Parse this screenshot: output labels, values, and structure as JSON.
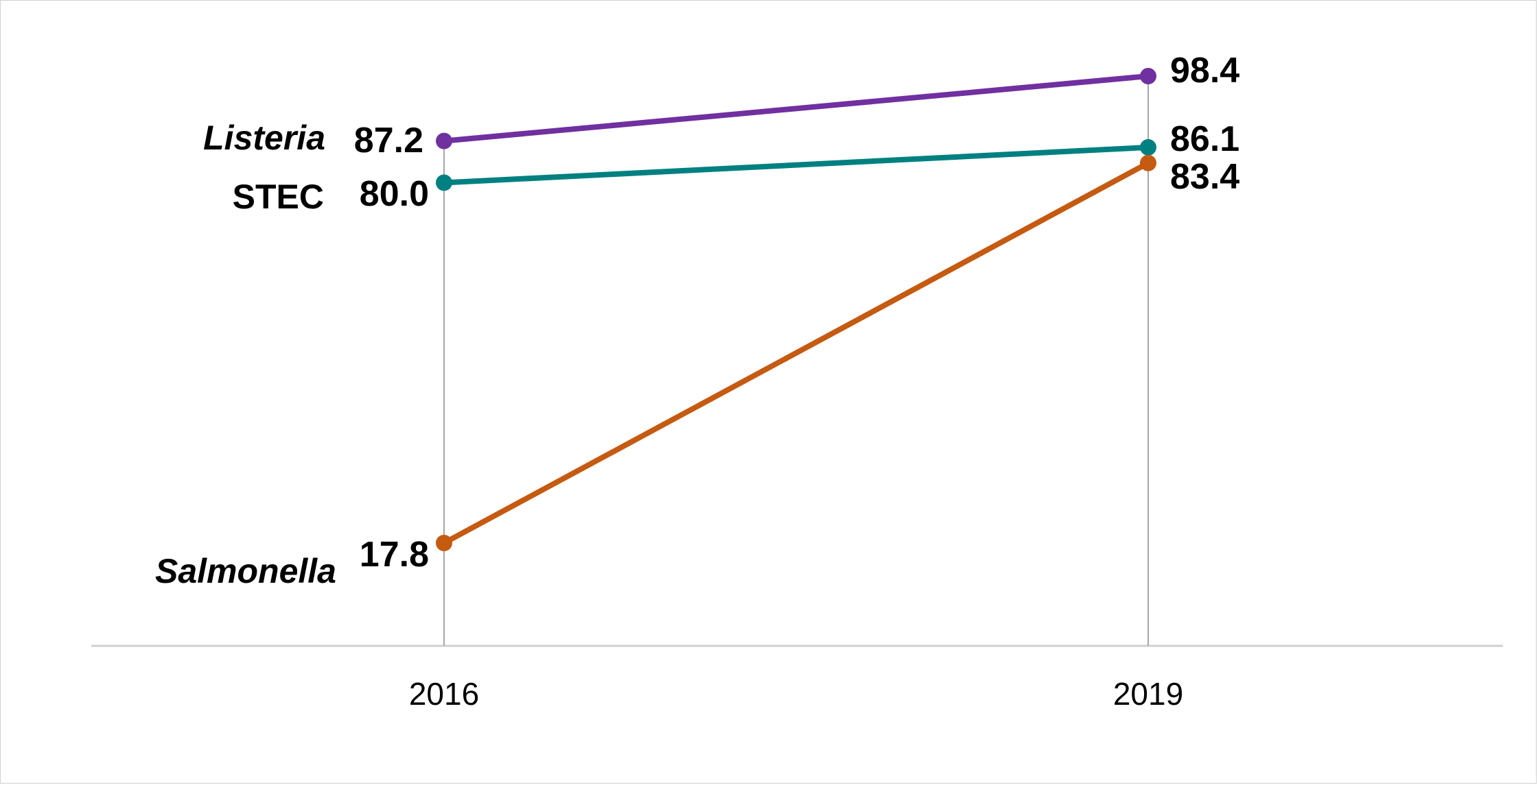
{
  "chart_data": {
    "type": "line",
    "categories": [
      "2016",
      "2019"
    ],
    "ylim": [
      0,
      110
    ],
    "grid": false,
    "series": [
      {
        "name": "Listeria",
        "name_style": "italic",
        "values": [
          87.2,
          98.4
        ],
        "labels": [
          "87.2",
          "98.4"
        ],
        "color": "#7030A0"
      },
      {
        "name": "STEC",
        "name_style": "normal",
        "values": [
          80.0,
          86.1
        ],
        "labels": [
          "80.0",
          "86.1"
        ],
        "color": "#008080"
      },
      {
        "name": "Salmonella",
        "name_style": "italic",
        "values": [
          17.8,
          83.4
        ],
        "labels": [
          "17.8",
          "83.4"
        ],
        "color": "#C55A11"
      }
    ],
    "title": "",
    "xlabel": "",
    "ylabel": ""
  }
}
